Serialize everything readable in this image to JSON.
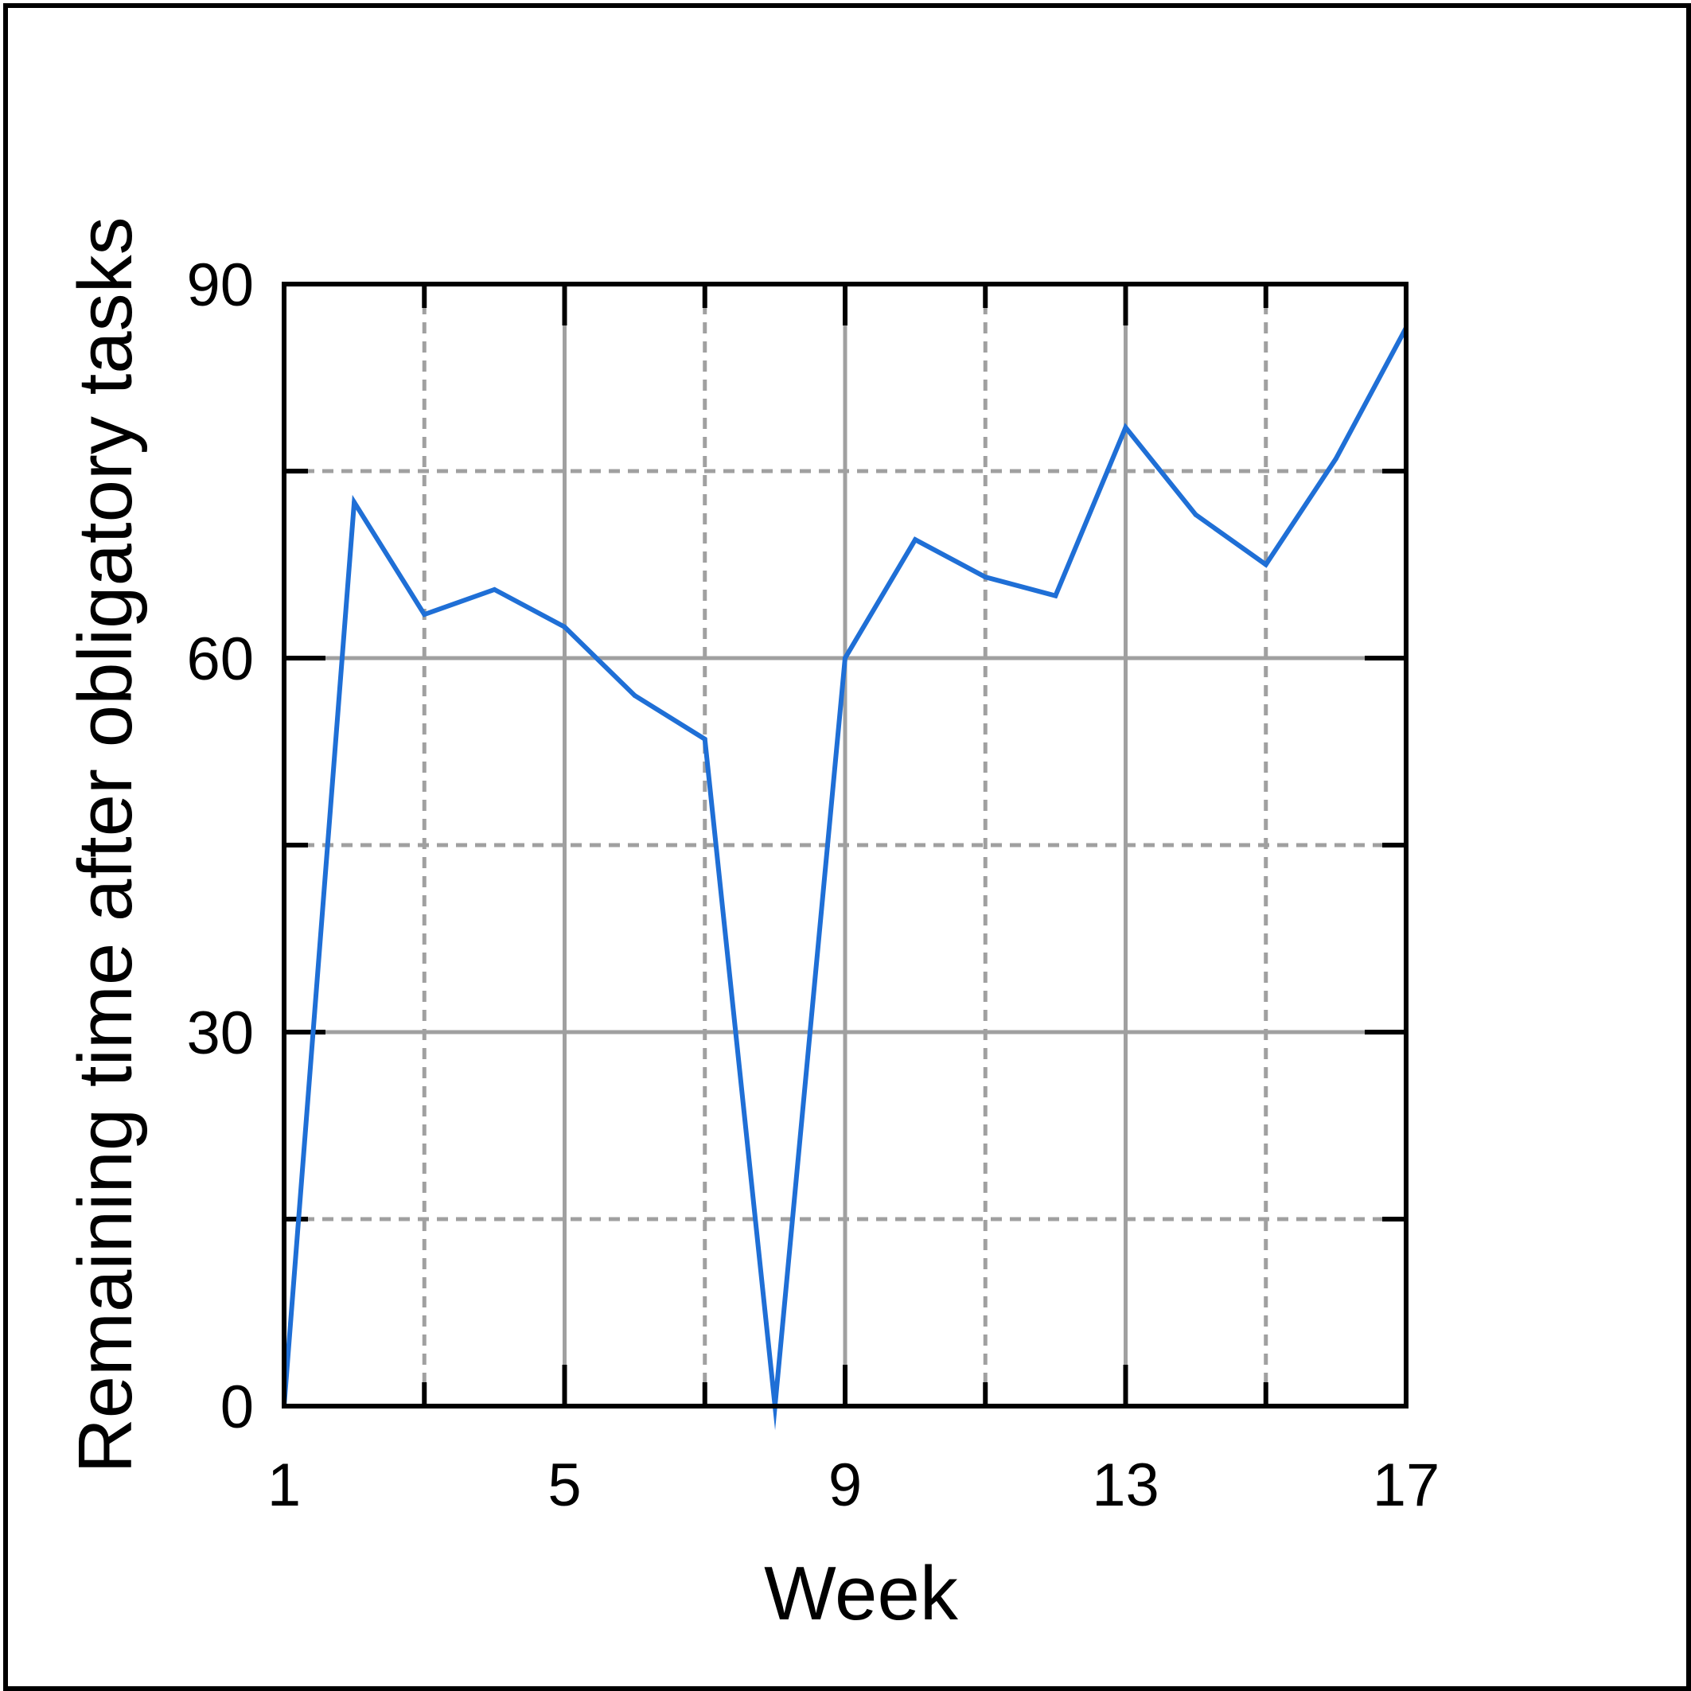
{
  "chart_data": {
    "type": "line",
    "title": "",
    "xlabel": "Week",
    "ylabel": "Remaining time after obligatory tasks",
    "xlim": [
      1,
      17
    ],
    "ylim": [
      0,
      90
    ],
    "x_major_ticks": [
      1,
      5,
      9,
      13,
      17
    ],
    "x_minor_ticks": [
      3,
      7,
      11,
      15
    ],
    "y_major_ticks": [
      0,
      30,
      60,
      90
    ],
    "y_minor_ticks": [
      15,
      45,
      75
    ],
    "x_tick_labels": [
      "1",
      "5",
      "9",
      "13",
      "17"
    ],
    "y_tick_labels": [
      "0",
      "30",
      "60",
      "90"
    ],
    "grid": true,
    "legend": "none",
    "line_color": "#1f6fd6",
    "grid_color": "#a0a0a0",
    "series": [
      {
        "x": [
          1,
          2,
          3,
          4,
          5,
          6,
          7,
          8,
          9,
          10,
          11,
          12,
          13,
          14,
          15,
          16,
          17
        ],
        "values": [
          0,
          72.5,
          63.5,
          65.5,
          62.5,
          57,
          53.5,
          0,
          60,
          69.5,
          66.5,
          65,
          78.5,
          71.5,
          67.5,
          76,
          86.5
        ]
      }
    ]
  }
}
